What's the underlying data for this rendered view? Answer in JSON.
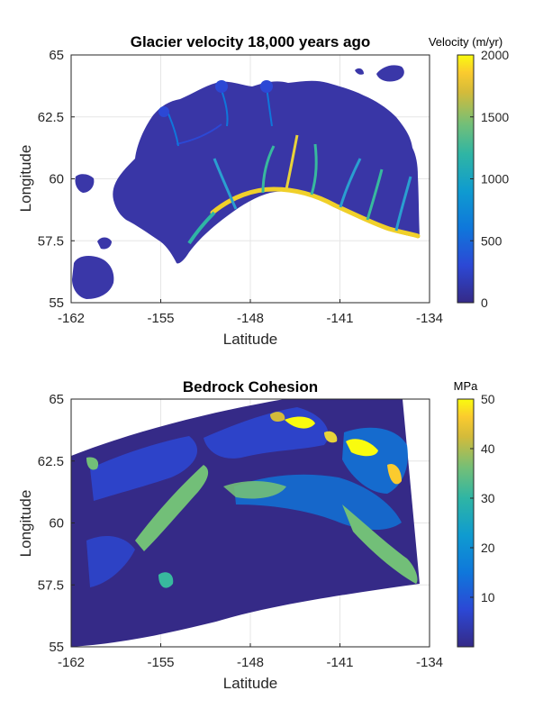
{
  "chart_data": [
    {
      "type": "heatmap",
      "title": "Glacier velocity 18,000 years ago",
      "xlabel": "Latitude",
      "ylabel": "Longitude",
      "xlim": [
        -162,
        -134
      ],
      "ylim": [
        55,
        65
      ],
      "xticks": [
        "-162",
        "-155",
        "-148",
        "-141",
        "-134"
      ],
      "yticks": [
        "55",
        "57.5",
        "60",
        "62.5",
        "65"
      ],
      "grid": true,
      "colorbar": {
        "title": "Velocity (m/yr)",
        "range": [
          0,
          2000
        ],
        "ticks": [
          "0",
          "500",
          "1000",
          "1500",
          "2000"
        ],
        "colormap": "parula"
      }
    },
    {
      "type": "heatmap",
      "title": "Bedrock Cohesion",
      "xlabel": "Latitude",
      "ylabel": "Longitude",
      "xlim": [
        -162,
        -134
      ],
      "ylim": [
        55,
        65
      ],
      "xticks": [
        "-162",
        "-155",
        "-148",
        "-141",
        "-134"
      ],
      "yticks": [
        "55",
        "57.5",
        "60",
        "62.5",
        "65"
      ],
      "grid": true,
      "colorbar": {
        "title": "MPa",
        "range": [
          0,
          50
        ],
        "ticks": [
          "10",
          "20",
          "30",
          "40",
          "50"
        ],
        "colormap": "parula"
      }
    }
  ],
  "colors": {
    "parula_low": "#352a87",
    "parula_mid": "#0f77db",
    "parula_teal": "#38b99e",
    "parula_high": "#f9fb0e",
    "grid": "#e6e6e6",
    "axis": "#262626"
  }
}
